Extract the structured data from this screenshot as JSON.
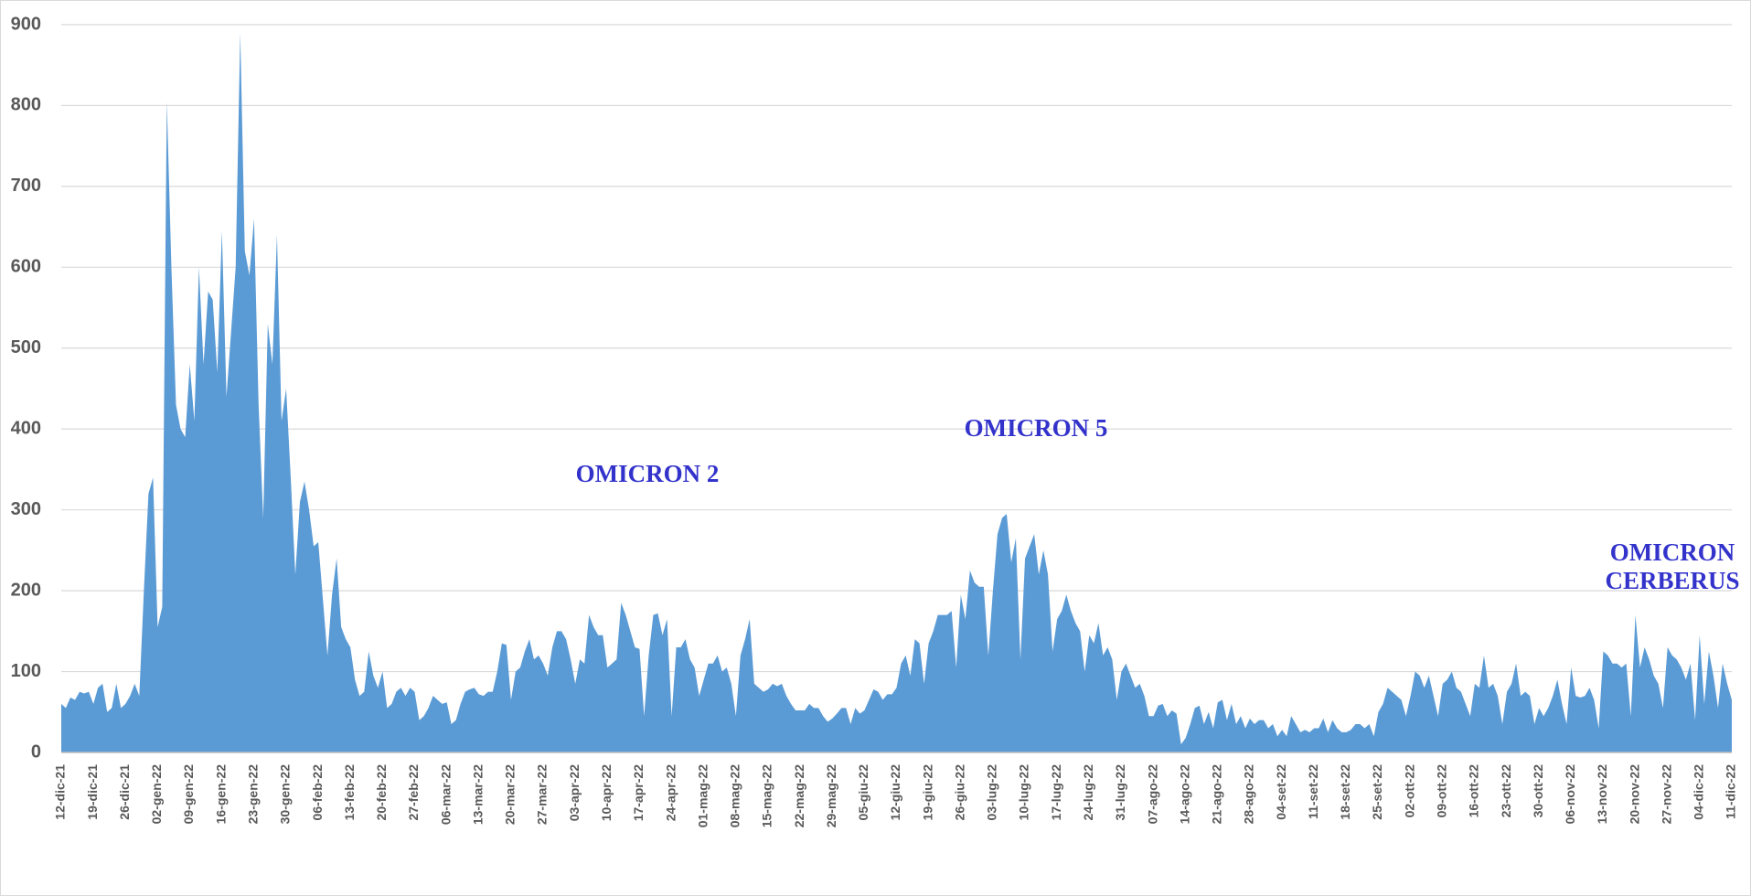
{
  "chart_data": {
    "type": "area",
    "color": "#5b9bd5",
    "grid": true,
    "ylim": [
      0,
      900
    ],
    "yticks": [
      0,
      100,
      200,
      300,
      400,
      500,
      600,
      700,
      800,
      900
    ],
    "annotations": [
      {
        "lines": [
          "OMICRON 2"
        ]
      },
      {
        "lines": [
          "OMICRON 5"
        ]
      },
      {
        "lines": [
          "OMICRON",
          "CERBERUS"
        ]
      }
    ],
    "categories": [
      "12-dic-21",
      null,
      null,
      null,
      null,
      null,
      null,
      "19-dic-21",
      null,
      null,
      null,
      null,
      null,
      null,
      "26-dic-21",
      null,
      null,
      null,
      null,
      null,
      null,
      "02-gen-22",
      null,
      null,
      null,
      null,
      null,
      null,
      "09-gen-22",
      null,
      null,
      null,
      null,
      null,
      null,
      "16-gen-22",
      null,
      null,
      null,
      null,
      null,
      null,
      "23-gen-22",
      null,
      null,
      null,
      null,
      null,
      null,
      "30-gen-22",
      null,
      null,
      null,
      null,
      null,
      null,
      "06-feb-22",
      null,
      null,
      null,
      null,
      null,
      null,
      "13-feb-22",
      null,
      null,
      null,
      null,
      null,
      null,
      "20-feb-22",
      null,
      null,
      null,
      null,
      null,
      null,
      "27-feb-22",
      null,
      null,
      null,
      null,
      null,
      null,
      "06-mar-22",
      null,
      null,
      null,
      null,
      null,
      null,
      "13-mar-22",
      null,
      null,
      null,
      null,
      null,
      null,
      "20-mar-22",
      null,
      null,
      null,
      null,
      null,
      null,
      "27-mar-22",
      null,
      null,
      null,
      null,
      null,
      null,
      "03-apr-22",
      null,
      null,
      null,
      null,
      null,
      null,
      "10-apr-22",
      null,
      null,
      null,
      null,
      null,
      null,
      "17-apr-22",
      null,
      null,
      null,
      null,
      null,
      null,
      "24-apr-22",
      null,
      null,
      null,
      null,
      null,
      null,
      "01-mag-22",
      null,
      null,
      null,
      null,
      null,
      null,
      "08-mag-22",
      null,
      null,
      null,
      null,
      null,
      null,
      "15-mag-22",
      null,
      null,
      null,
      null,
      null,
      null,
      "22-mag-22",
      null,
      null,
      null,
      null,
      null,
      null,
      "29-mag-22",
      null,
      null,
      null,
      null,
      null,
      null,
      "05-giu-22",
      null,
      null,
      null,
      null,
      null,
      null,
      "12-giu-22",
      null,
      null,
      null,
      null,
      null,
      null,
      "19-giu-22",
      null,
      null,
      null,
      null,
      null,
      null,
      "26-giu-22",
      null,
      null,
      null,
      null,
      null,
      null,
      "03-lug-22",
      null,
      null,
      null,
      null,
      null,
      null,
      "10-lug-22",
      null,
      null,
      null,
      null,
      null,
      null,
      "17-lug-22",
      null,
      null,
      null,
      null,
      null,
      null,
      "24-lug-22",
      null,
      null,
      null,
      null,
      null,
      null,
      "31-lug-22",
      null,
      null,
      null,
      null,
      null,
      null,
      "07-ago-22",
      null,
      null,
      null,
      null,
      null,
      null,
      "14-ago-22",
      null,
      null,
      null,
      null,
      null,
      null,
      "21-ago-22",
      null,
      null,
      null,
      null,
      null,
      null,
      "28-ago-22",
      null,
      null,
      null,
      null,
      null,
      null,
      "04-set-22",
      null,
      null,
      null,
      null,
      null,
      null,
      "11-set-22",
      null,
      null,
      null,
      null,
      null,
      null,
      "18-set-22",
      null,
      null,
      null,
      null,
      null,
      null,
      "25-set-22",
      null,
      null,
      null,
      null,
      null,
      null,
      "02-ott-22",
      null,
      null,
      null,
      null,
      null,
      null,
      "09-ott-22",
      null,
      null,
      null,
      null,
      null,
      null,
      "16-ott-22",
      null,
      null,
      null,
      null,
      null,
      null,
      "23-ott-22",
      null,
      null,
      null,
      null,
      null,
      null,
      "30-ott-22",
      null,
      null,
      null,
      null,
      null,
      null,
      "06-nov-22",
      null,
      null,
      null,
      null,
      null,
      null,
      "13-nov-22",
      null,
      null,
      null,
      null,
      null,
      null,
      "20-nov-22",
      null,
      null,
      null,
      null,
      null,
      null,
      "27-nov-22",
      null,
      null,
      null,
      null,
      null,
      null,
      "04-dic-22",
      null,
      null,
      null,
      null,
      null,
      null,
      "11-dic-22"
    ],
    "values": [
      60,
      55,
      68,
      65,
      75,
      73,
      75,
      60,
      80,
      85,
      50,
      55,
      85,
      55,
      60,
      70,
      85,
      70,
      200,
      320,
      340,
      155,
      180,
      805,
      600,
      430,
      400,
      390,
      480,
      410,
      600,
      480,
      570,
      560,
      470,
      645,
      440,
      520,
      600,
      890,
      620,
      590,
      660,
      430,
      290,
      530,
      480,
      640,
      410,
      450,
      340,
      220,
      310,
      335,
      300,
      255,
      260,
      190,
      120,
      195,
      240,
      155,
      140,
      130,
      90,
      70,
      75,
      125,
      95,
      80,
      100,
      55,
      60,
      75,
      80,
      70,
      80,
      75,
      40,
      45,
      55,
      70,
      65,
      60,
      62,
      35,
      40,
      60,
      75,
      78,
      80,
      72,
      70,
      75,
      75,
      100,
      135,
      133,
      65,
      100,
      105,
      125,
      140,
      115,
      120,
      110,
      95,
      130,
      150,
      150,
      140,
      115,
      85,
      115,
      110,
      170,
      155,
      145,
      145,
      105,
      110,
      115,
      185,
      170,
      150,
      130,
      128,
      45,
      120,
      170,
      172,
      145,
      165,
      45,
      130,
      130,
      140,
      115,
      105,
      70,
      90,
      110,
      110,
      120,
      100,
      105,
      85,
      45,
      120,
      140,
      165,
      85,
      80,
      75,
      78,
      85,
      82,
      85,
      70,
      60,
      52,
      52,
      52,
      60,
      55,
      55,
      45,
      38,
      42,
      48,
      55,
      55,
      35,
      55,
      48,
      52,
      65,
      78,
      75,
      65,
      72,
      72,
      80,
      110,
      120,
      95,
      140,
      135,
      85,
      135,
      150,
      170,
      170,
      170,
      175,
      105,
      195,
      165,
      225,
      210,
      205,
      205,
      120,
      200,
      270,
      290,
      295,
      235,
      265,
      115,
      240,
      255,
      270,
      220,
      250,
      220,
      125,
      165,
      175,
      195,
      175,
      160,
      150,
      100,
      145,
      135,
      160,
      120,
      130,
      115,
      65,
      100,
      110,
      95,
      80,
      85,
      70,
      45,
      45,
      58,
      60,
      45,
      52,
      48,
      10,
      18,
      35,
      55,
      58,
      35,
      50,
      30,
      62,
      65,
      40,
      60,
      35,
      45,
      30,
      42,
      35,
      40,
      40,
      30,
      35,
      20,
      28,
      20,
      45,
      35,
      25,
      28,
      25,
      30,
      30,
      42,
      25,
      40,
      30,
      25,
      25,
      28,
      35,
      35,
      30,
      35,
      20,
      50,
      60,
      80,
      75,
      70,
      65,
      45,
      70,
      100,
      95,
      80,
      95,
      70,
      45,
      85,
      90,
      100,
      80,
      75,
      60,
      45,
      85,
      80,
      120,
      80,
      85,
      70,
      35,
      75,
      85,
      110,
      70,
      75,
      70,
      35,
      55,
      45,
      55,
      70,
      90,
      60,
      35,
      105,
      70,
      68,
      70,
      80,
      65,
      30,
      125,
      120,
      110,
      110,
      105,
      110,
      45,
      170,
      105,
      130,
      115,
      95,
      85,
      55,
      130,
      120,
      115,
      105,
      90,
      110,
      40,
      145,
      60,
      125,
      95,
      55,
      110,
      85,
      65
    ]
  }
}
